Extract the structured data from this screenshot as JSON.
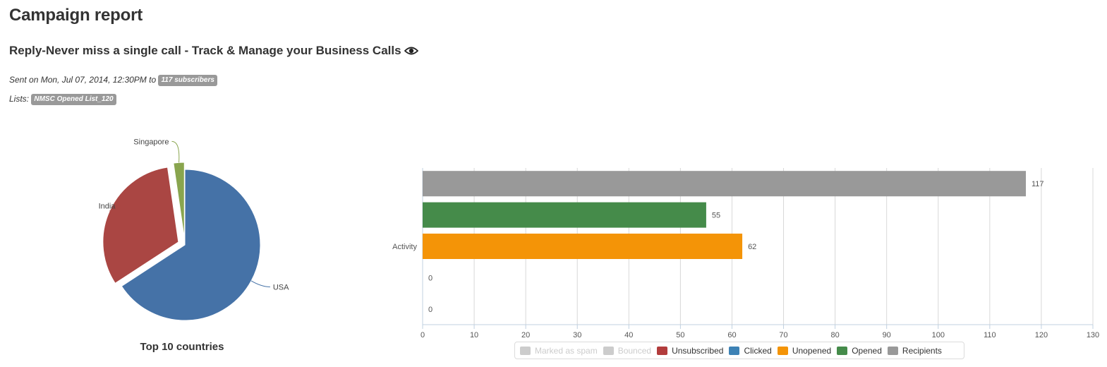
{
  "page": {
    "title": "Campaign report",
    "campaign_name": "Reply-Never miss a single call - Track & Manage your Business Calls",
    "sent_prefix": "Sent on Mon, Jul 07, 2014, 12:30PM to",
    "subscribers_badge": "117 subscribers",
    "lists_prefix": "Lists:",
    "list_badge": "NMSC Opened List_120"
  },
  "chart_data": [
    {
      "type": "pie",
      "title": "Top 10 countries",
      "slices": [
        {
          "label": "USA",
          "value": 65.8,
          "color": "#4572a7"
        },
        {
          "label": "India",
          "value": 31.9,
          "color": "#aa4643"
        },
        {
          "label": "Singapore",
          "value": 2.3,
          "color": "#89a54e"
        }
      ]
    },
    {
      "type": "bar",
      "orientation": "horizontal",
      "categories": [
        "Activity"
      ],
      "xlim": [
        0,
        130
      ],
      "ticks": [
        "0",
        "10",
        "20",
        "30",
        "40",
        "50",
        "60",
        "70",
        "80",
        "90",
        "100",
        "110",
        "120",
        "130"
      ],
      "grid": true,
      "legend_position": "bottom",
      "series": [
        {
          "name": "Recipients",
          "values": [
            117
          ],
          "color": "#999999",
          "label": "117"
        },
        {
          "name": "Opened",
          "values": [
            55
          ],
          "color": "#458b4a",
          "label": "55"
        },
        {
          "name": "Unopened",
          "values": [
            62
          ],
          "color": "#f49407",
          "label": "62"
        },
        {
          "name": "Clicked",
          "values": [
            0
          ],
          "color": "#3d82b5",
          "label": "0"
        },
        {
          "name": "Unsubscribed",
          "values": [
            0
          ],
          "color": "#b23c3c",
          "label": "0"
        }
      ],
      "legend": [
        {
          "name": "Marked as spam",
          "color": "#cccccc",
          "hidden": true
        },
        {
          "name": "Bounced",
          "color": "#cccccc",
          "hidden": true
        },
        {
          "name": "Unsubscribed",
          "color": "#b23c3c",
          "hidden": false
        },
        {
          "name": "Clicked",
          "color": "#3d82b5",
          "hidden": false
        },
        {
          "name": "Unopened",
          "color": "#f49407",
          "hidden": false
        },
        {
          "name": "Opened",
          "color": "#458b4a",
          "hidden": false
        },
        {
          "name": "Recipients",
          "color": "#999999",
          "hidden": false
        }
      ]
    }
  ]
}
